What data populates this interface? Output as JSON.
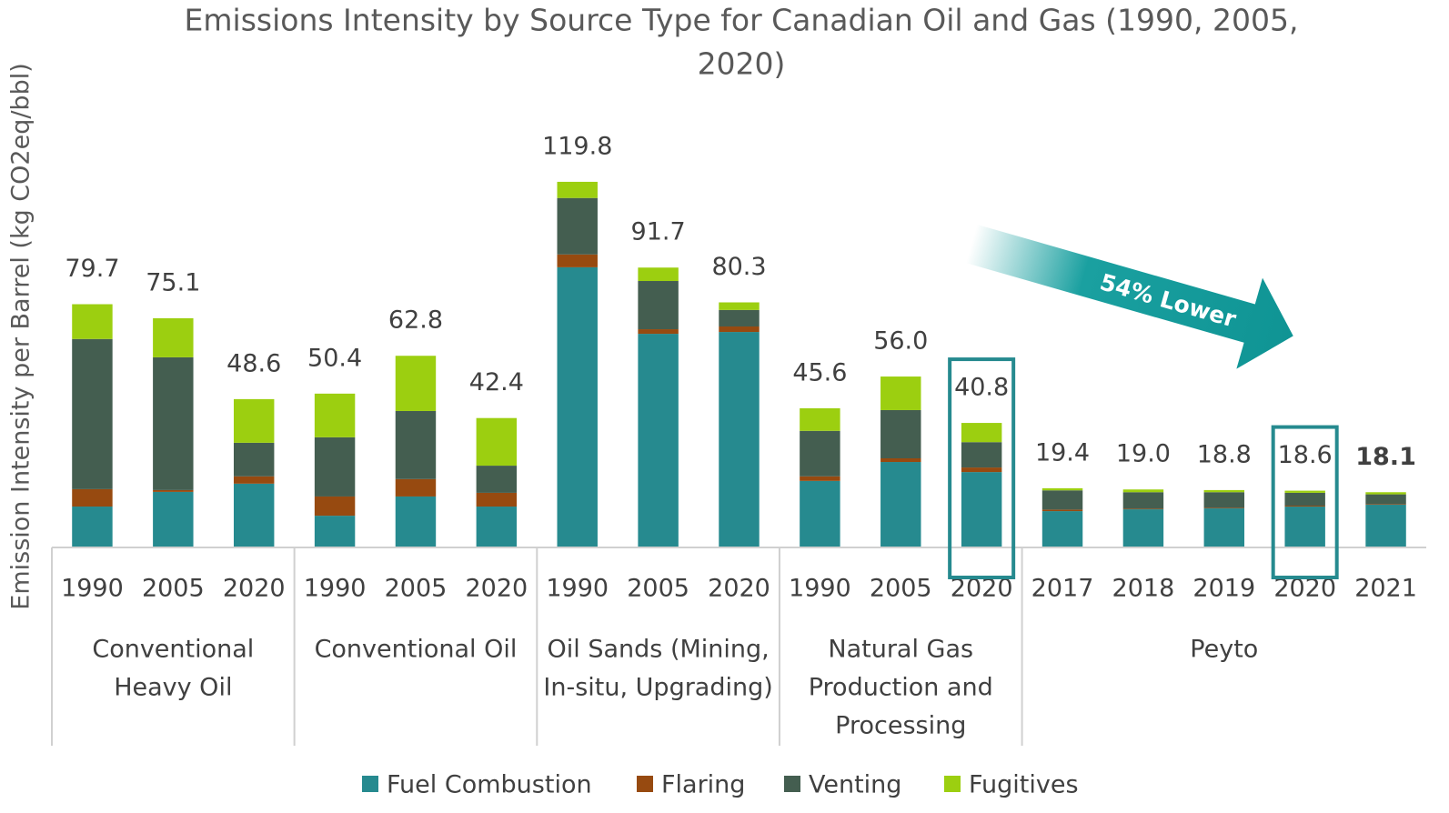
{
  "chart_data": {
    "type": "stacked_bar",
    "title": [
      "Emissions Intensity by Source Type for Canadian Oil and Gas (1990, 2005,",
      "2020)"
    ],
    "y_label": "Emission Intensity per Barrel (kg CO2eq/bbl)",
    "categories": [
      "1990",
      "2005",
      "2020",
      "1990",
      "2005",
      "2020",
      "1990",
      "2005",
      "2020",
      "1990",
      "2005",
      "2020",
      "2017",
      "2018",
      "2019",
      "2020",
      "2021"
    ],
    "groups": [
      {
        "name": [
          "Conventional",
          "Heavy Oil"
        ],
        "count": 3
      },
      {
        "name": [
          "Conventional Oil"
        ],
        "count": 3
      },
      {
        "name": [
          "Oil Sands (Mining,",
          "In-situ, Upgrading)"
        ],
        "count": 3
      },
      {
        "name": [
          "Natural Gas",
          "Production and",
          "Processing"
        ],
        "count": 3
      },
      {
        "name": [
          "Peyto"
        ],
        "count": 5
      }
    ],
    "series": [
      {
        "name": "Fuel Combustion",
        "color": "#268a8f",
        "values": [
          13.4,
          18.2,
          20.9,
          10.4,
          16.7,
          13.4,
          91.8,
          70.0,
          70.6,
          21.8,
          28.0,
          24.7,
          11.9,
          12.5,
          12.8,
          13.4,
          14.0
        ]
      },
      {
        "name": "Flaring",
        "color": "#974a10",
        "values": [
          5.7,
          0.6,
          2.4,
          6.3,
          5.7,
          4.5,
          4.2,
          1.5,
          1.8,
          1.5,
          1.2,
          1.5,
          0.5,
          0.2,
          0.2,
          0.3,
          0.2
        ]
      },
      {
        "name": "Venting",
        "color": "#445e50",
        "values": [
          49.2,
          43.5,
          11.0,
          19.4,
          22.3,
          8.9,
          18.5,
          15.8,
          5.4,
          14.9,
          15.8,
          8.3,
          6.3,
          5.4,
          5.1,
          4.2,
          3.2
        ]
      },
      {
        "name": "Fugitives",
        "color": "#9ccf10",
        "values": [
          11.4,
          12.8,
          14.3,
          14.3,
          18.1,
          15.6,
          5.3,
          4.4,
          2.5,
          7.4,
          11.0,
          6.3,
          0.7,
          0.9,
          0.7,
          0.7,
          0.7
        ]
      }
    ],
    "totals": [
      79.7,
      75.1,
      48.6,
      50.4,
      62.8,
      42.4,
      119.8,
      91.7,
      80.3,
      45.6,
      56.0,
      40.8,
      19.4,
      19.0,
      18.8,
      18.6,
      18.1
    ],
    "total_labels": [
      "79.7",
      "75.1",
      "48.6",
      "50.4",
      "62.8",
      "42.4",
      "119.8",
      "91.7",
      "80.3",
      "45.6",
      "56.0",
      "40.8",
      "19.4",
      "19.0",
      "18.8",
      "18.6",
      "18.1"
    ],
    "bold_total": 16,
    "highlight": [
      11,
      15
    ],
    "annotation": "54% Lower",
    "ylim": [
      0,
      130
    ],
    "legend": "bottom"
  }
}
